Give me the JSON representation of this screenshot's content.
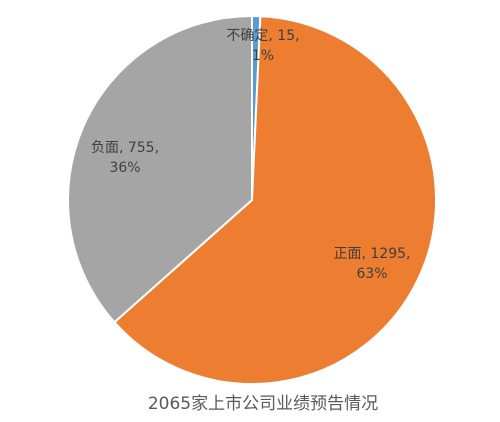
{
  "chart_data": {
    "type": "pie",
    "title": "2065家上市公司业绩预告情况",
    "slices": [
      {
        "name": "不确定",
        "value": 15,
        "percent": "1%",
        "color": "#5B9BD5",
        "label_line1": "不确定, 15,",
        "label_line2": "1%"
      },
      {
        "name": "正面",
        "value": 1295,
        "percent": "63%",
        "color": "#ED7D31",
        "label_line1": "正面, 1295,",
        "label_line2": "63%"
      },
      {
        "name": "负面",
        "value": 755,
        "percent": "36%",
        "color": "#A5A5A5",
        "label_line1": "负面, 755,",
        "label_line2": "36%"
      }
    ],
    "legend": "none",
    "data_labels": "inside"
  }
}
